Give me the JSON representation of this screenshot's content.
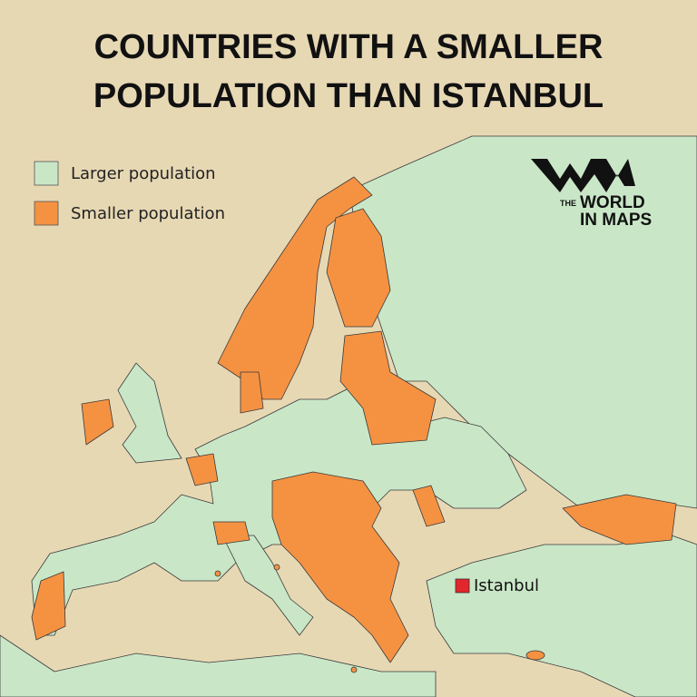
{
  "title": [
    "COUNTRIES WITH A SMALLER",
    "POPULATION THAN ISTANBUL"
  ],
  "legend": [
    {
      "label": "Larger population",
      "color": "#c9e7c7"
    },
    {
      "label": "Smaller population",
      "color": "#f59242"
    }
  ],
  "logo": [
    "THE",
    "WORLD",
    "IN MAPS"
  ],
  "marker": {
    "label": "Istanbul",
    "color": "#e3262b"
  }
}
